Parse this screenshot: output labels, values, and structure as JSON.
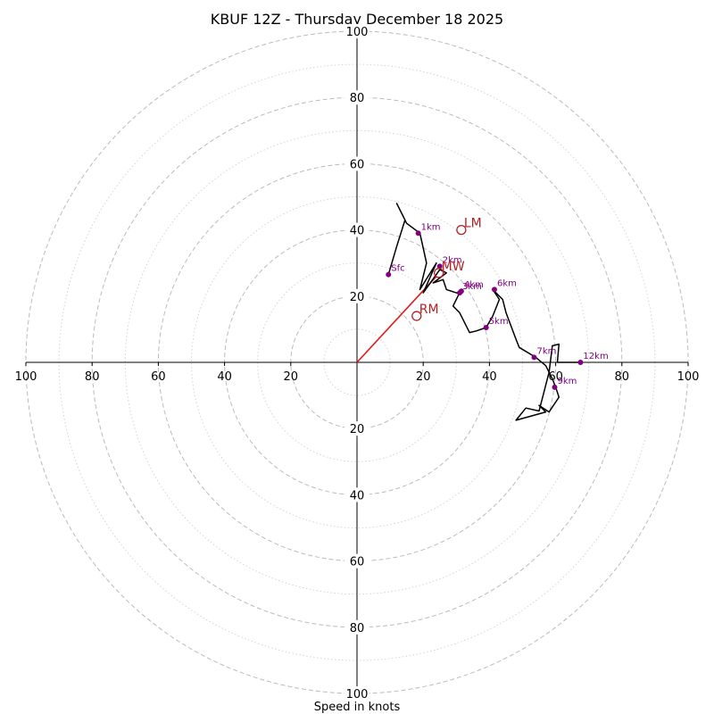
{
  "chart_data": {
    "type": "scatter",
    "subtype": "hodograph",
    "title": "KBUF 12Z - Thursday December 18 2025",
    "xlabel": "Speed in knots",
    "xlim": [
      -100,
      100
    ],
    "ylim": [
      -100,
      100
    ],
    "major_rings": [
      20,
      40,
      60,
      80,
      100
    ],
    "minor_rings": [
      10,
      30,
      50,
      70,
      90
    ],
    "grid": true,
    "tick_labels": [
      "20",
      "40",
      "60",
      "80",
      "100"
    ],
    "colors": {
      "trace": "#000000",
      "height_point": "#800080",
      "bunkers": "#b22222",
      "shear_vector": "#e31a1c",
      "major_grid": "#bbbbbb",
      "minor_grid": "#d3d3d3"
    },
    "trace": [
      [
        9.5,
        26.5
      ],
      [
        12,
        35
      ],
      [
        14.5,
        43
      ],
      [
        12,
        48
      ],
      [
        15,
        42
      ],
      [
        19,
        39
      ],
      [
        21,
        30
      ],
      [
        19,
        22
      ],
      [
        24,
        30
      ],
      [
        20,
        21
      ],
      [
        25,
        28
      ],
      [
        27,
        27
      ],
      [
        23,
        24
      ],
      [
        26,
        25
      ],
      [
        27,
        22
      ],
      [
        30,
        21
      ],
      [
        31,
        21
      ],
      [
        29,
        17
      ],
      [
        31,
        15
      ],
      [
        34,
        9
      ],
      [
        36,
        9.5
      ],
      [
        39,
        10.5
      ],
      [
        41,
        14
      ],
      [
        43,
        19
      ],
      [
        41,
        22
      ],
      [
        44,
        19
      ],
      [
        45,
        15
      ],
      [
        48,
        7
      ],
      [
        49,
        4.5
      ],
      [
        54,
        1.5
      ],
      [
        57,
        -1
      ],
      [
        59,
        -5
      ],
      [
        60,
        -7.5
      ],
      [
        61,
        -10.5
      ],
      [
        58,
        -15
      ],
      [
        55,
        -13
      ],
      [
        57,
        -15
      ],
      [
        48,
        -17.5
      ],
      [
        51,
        -13.8
      ],
      [
        55,
        -14.7
      ],
      [
        58,
        -3
      ],
      [
        59,
        5
      ],
      [
        61,
        5.5
      ],
      [
        60.5,
        0
      ],
      [
        67.5,
        0
      ]
    ],
    "height_points": [
      {
        "label": "Sfc",
        "u": 9.5,
        "v": 26.5
      },
      {
        "label": "1km",
        "u": 18.5,
        "v": 39
      },
      {
        "label": "2km",
        "u": 25,
        "v": 29
      },
      {
        "label": "3km",
        "u": 31,
        "v": 21
      },
      {
        "label": "4km",
        "u": 31.5,
        "v": 21.5
      },
      {
        "label": "5km",
        "u": 39,
        "v": 10.5
      },
      {
        "label": "6km",
        "u": 41.5,
        "v": 22
      },
      {
        "label": "7km",
        "u": 53.5,
        "v": 1.5
      },
      {
        "label": "9km",
        "u": 59.7,
        "v": -7.5
      },
      {
        "label": "12km",
        "u": 67.5,
        "v": 0
      }
    ],
    "storm_motions": [
      {
        "label": "RM",
        "u": 18,
        "v": 14
      },
      {
        "label": "LM",
        "u": 31.5,
        "v": 40
      },
      {
        "label": "MW",
        "u": 24.7,
        "v": 27
      }
    ],
    "shear_vector": {
      "from": [
        0,
        0
      ],
      "to": [
        24,
        26
      ]
    }
  }
}
